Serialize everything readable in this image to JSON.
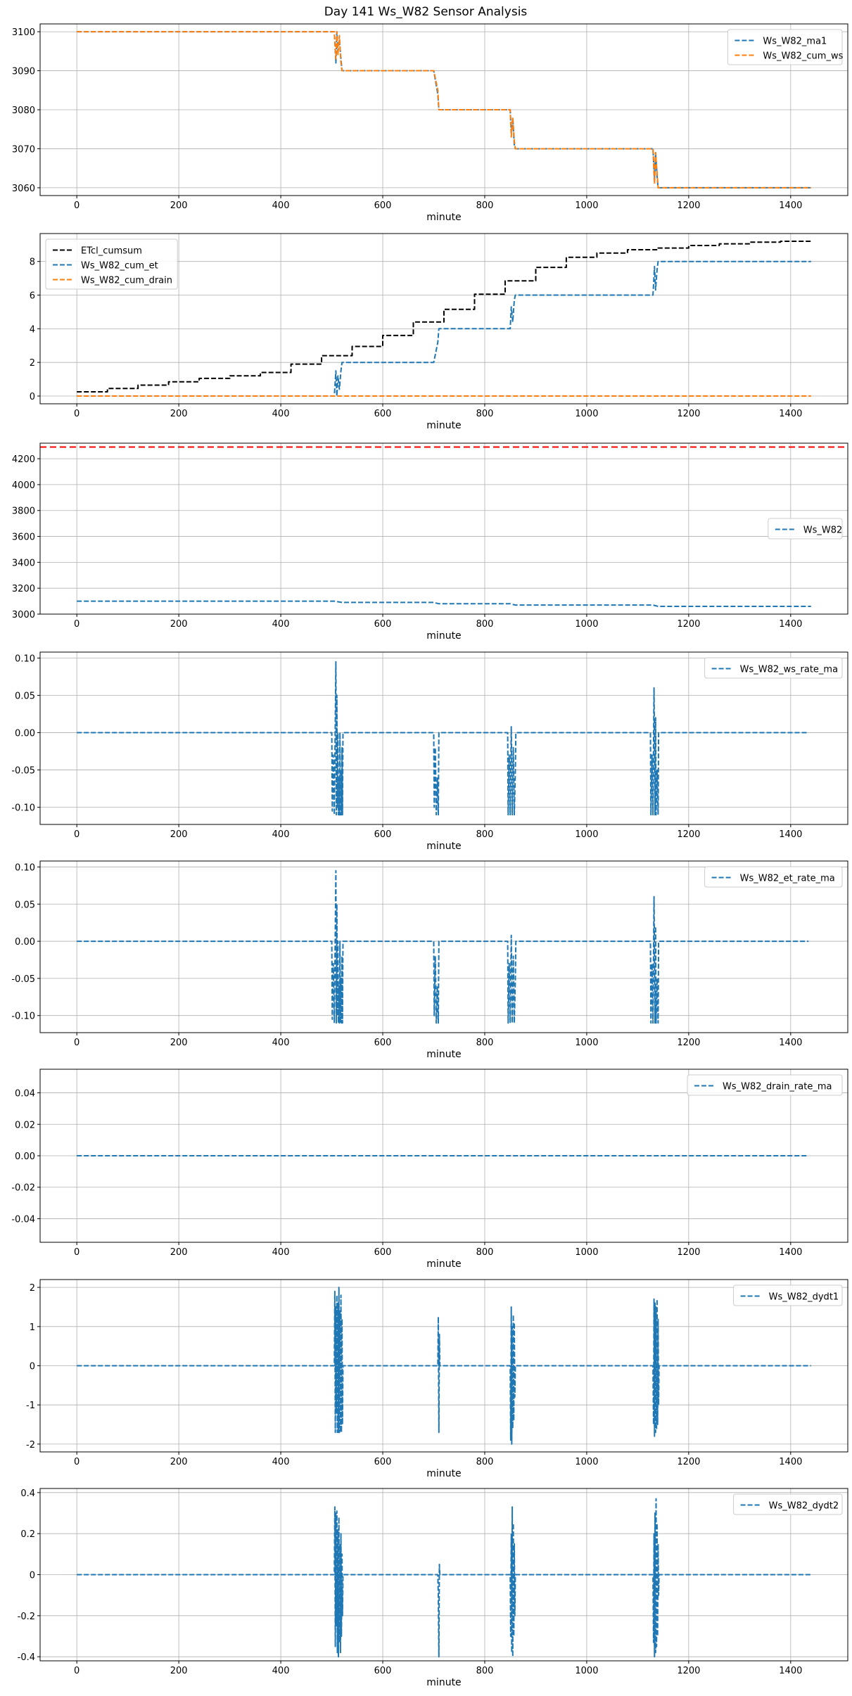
{
  "figure": {
    "title": "Day 141 Ws_W82 Sensor Analysis"
  },
  "colors": {
    "blue": "#1f77b4",
    "orange": "#ff7f0e",
    "black": "#000000",
    "red": "#ff0000",
    "grid": "#b0b0b0"
  },
  "chart_data": [
    {
      "type": "line",
      "xlabel": "minute",
      "xlim": [
        -72,
        1512
      ],
      "ylim": [
        3058,
        3102
      ],
      "x_ticks": [
        0,
        200,
        400,
        600,
        800,
        1000,
        1200,
        1400
      ],
      "y_ticks": [
        3060,
        3070,
        3080,
        3090,
        3100
      ],
      "legend_position": "upper right",
      "grid": true,
      "series": [
        {
          "name": "Ws_W82_ma1",
          "color": "#1f77b4",
          "dashed": true,
          "x": [
            0,
            505,
            508,
            510,
            512,
            515,
            518,
            520,
            700,
            708,
            710,
            850,
            852,
            855,
            858,
            860,
            1130,
            1133,
            1135,
            1138,
            1140,
            1440
          ],
          "y": [
            3100,
            3100,
            3092,
            3100,
            3095,
            3098,
            3093,
            3090,
            3090,
            3084,
            3080,
            3080,
            3074,
            3078,
            3071,
            3070,
            3070,
            3062,
            3069,
            3063,
            3060,
            3060
          ]
        },
        {
          "name": "Ws_W82_cum_ws",
          "color": "#ff7f0e",
          "dashed": true,
          "x": [
            0,
            505,
            508,
            510,
            512,
            515,
            518,
            520,
            700,
            708,
            710,
            850,
            852,
            855,
            858,
            860,
            1130,
            1133,
            1135,
            1138,
            1140,
            1440
          ],
          "y": [
            3100,
            3100,
            3093,
            3100,
            3094,
            3099,
            3092,
            3090,
            3090,
            3085,
            3080,
            3080,
            3073,
            3078,
            3072,
            3070,
            3070,
            3061,
            3069,
            3064,
            3060,
            3060
          ]
        }
      ]
    },
    {
      "type": "line",
      "xlabel": "minute",
      "xlim": [
        -72,
        1512
      ],
      "ylim": [
        -0.46,
        9.66
      ],
      "x_ticks": [
        0,
        200,
        400,
        600,
        800,
        1000,
        1200,
        1400
      ],
      "y_ticks": [
        0,
        2,
        4,
        6,
        8
      ],
      "legend_position": "upper left",
      "grid": true,
      "series": [
        {
          "name": "ETcl_cumsum",
          "color": "#000000",
          "dashed": true,
          "step": true,
          "x": [
            0,
            60,
            120,
            180,
            240,
            300,
            360,
            420,
            480,
            540,
            600,
            660,
            720,
            780,
            840,
            900,
            960,
            1020,
            1080,
            1140,
            1200,
            1260,
            1320,
            1380,
            1440
          ],
          "y": [
            0.25,
            0.45,
            0.65,
            0.85,
            1.05,
            1.2,
            1.4,
            1.9,
            2.4,
            2.95,
            3.6,
            4.4,
            5.15,
            6.05,
            6.85,
            7.65,
            8.25,
            8.5,
            8.7,
            8.8,
            8.95,
            9.05,
            9.15,
            9.2,
            9.2
          ]
        },
        {
          "name": "Ws_W82_cum_et",
          "color": "#1f77b4",
          "dashed": true,
          "x": [
            0,
            505,
            508,
            510,
            512,
            515,
            518,
            520,
            700,
            708,
            710,
            850,
            852,
            855,
            858,
            860,
            1130,
            1133,
            1135,
            1138,
            1140,
            1440
          ],
          "y": [
            0,
            0,
            1.5,
            0,
            1.2,
            0.4,
            1.5,
            2,
            2,
            3.2,
            4,
            4,
            5.3,
            4.4,
            5.7,
            6,
            6,
            7.7,
            6.3,
            7.5,
            8,
            8
          ]
        },
        {
          "name": "Ws_W82_cum_drain",
          "color": "#ff7f0e",
          "dashed": true,
          "x": [
            0,
            1440
          ],
          "y": [
            0,
            0
          ]
        }
      ]
    },
    {
      "type": "line",
      "xlabel": "minute",
      "xlim": [
        -72,
        1512
      ],
      "ylim": [
        3000,
        4320
      ],
      "x_ticks": [
        0,
        200,
        400,
        600,
        800,
        1000,
        1200,
        1400
      ],
      "y_ticks": [
        3000,
        3200,
        3400,
        3600,
        3800,
        4000,
        4200
      ],
      "legend_position": "center right",
      "grid": true,
      "hline": {
        "y": 4290,
        "color": "#ff0000",
        "dashed": true
      },
      "series": [
        {
          "name": "Ws_W82",
          "color": "#1f77b4",
          "dashed": true,
          "x": [
            0,
            505,
            520,
            700,
            710,
            850,
            860,
            1130,
            1140,
            1440
          ],
          "y": [
            3100,
            3100,
            3090,
            3090,
            3080,
            3080,
            3070,
            3070,
            3060,
            3060
          ]
        }
      ]
    },
    {
      "type": "line",
      "xlabel": "minute",
      "xlim": [
        -72,
        1512
      ],
      "ylim": [
        -0.123,
        0.108
      ],
      "x_ticks": [
        0,
        200,
        400,
        600,
        800,
        1000,
        1200,
        1400
      ],
      "y_ticks": [
        -0.1,
        -0.05,
        0.0,
        0.05,
        0.1
      ],
      "y_tick_labels": [
        "-0.10",
        "-0.05",
        "0.00",
        "0.05",
        "0.10"
      ],
      "legend_position": "upper right",
      "grid": true,
      "series": [
        {
          "name": "Ws_W82_ws_rate_ma",
          "color": "#1f77b4",
          "dashed": true,
          "x": [
            0,
            500,
            501,
            503,
            505,
            507,
            508,
            509,
            510,
            511,
            512,
            513,
            514,
            515,
            516,
            517,
            518,
            519,
            520,
            521,
            522,
            700,
            701,
            703,
            705,
            707,
            709,
            710,
            845,
            846,
            848,
            850,
            852,
            854,
            856,
            858,
            860,
            861,
            1125,
            1126,
            1128,
            1130,
            1132,
            1134,
            1135,
            1136,
            1138,
            1140,
            1141,
            1435
          ],
          "y": [
            0,
            0,
            -0.105,
            -0.03,
            -0.11,
            0.02,
            0.095,
            -0.11,
            0.05,
            -0.1,
            0.0,
            -0.11,
            -0.06,
            -0.11,
            0.0,
            -0.11,
            -0.05,
            -0.11,
            -0.02,
            -0.11,
            0,
            0,
            -0.1,
            -0.02,
            -0.11,
            -0.06,
            -0.11,
            0,
            0,
            -0.11,
            -0.03,
            -0.11,
            0.008,
            -0.11,
            -0.02,
            -0.11,
            -0.05,
            0,
            0,
            -0.11,
            -0.03,
            -0.11,
            0.06,
            -0.11,
            0.02,
            -0.11,
            -0.05,
            -0.11,
            0,
            0
          ]
        }
      ]
    },
    {
      "type": "line",
      "xlabel": "minute",
      "xlim": [
        -72,
        1512
      ],
      "ylim": [
        -0.123,
        0.108
      ],
      "x_ticks": [
        0,
        200,
        400,
        600,
        800,
        1000,
        1200,
        1400
      ],
      "y_ticks": [
        -0.1,
        -0.05,
        0.0,
        0.05,
        0.1
      ],
      "y_tick_labels": [
        "-0.10",
        "-0.05",
        "0.00",
        "0.05",
        "0.10"
      ],
      "legend_position": "upper right",
      "grid": true,
      "series": [
        {
          "name": "Ws_W82_et_rate_ma",
          "color": "#1f77b4",
          "dashed": true,
          "x": [
            0,
            500,
            501,
            503,
            505,
            507,
            508,
            509,
            510,
            511,
            512,
            513,
            514,
            515,
            516,
            517,
            518,
            519,
            520,
            521,
            522,
            700,
            701,
            703,
            705,
            707,
            709,
            710,
            845,
            846,
            848,
            850,
            852,
            854,
            856,
            858,
            860,
            861,
            1125,
            1126,
            1128,
            1130,
            1132,
            1134,
            1135,
            1136,
            1138,
            1140,
            1141,
            1435
          ],
          "y": [
            0,
            0,
            -0.105,
            -0.03,
            -0.11,
            0.02,
            0.095,
            -0.11,
            0.05,
            -0.1,
            0.0,
            -0.11,
            -0.06,
            -0.11,
            0.0,
            -0.11,
            -0.05,
            -0.11,
            -0.02,
            -0.11,
            0,
            0,
            -0.1,
            -0.02,
            -0.11,
            -0.06,
            -0.11,
            0,
            0,
            -0.11,
            -0.03,
            -0.11,
            0.008,
            -0.11,
            -0.02,
            -0.11,
            -0.05,
            0,
            0,
            -0.11,
            -0.03,
            -0.11,
            0.06,
            -0.11,
            0.02,
            -0.11,
            -0.05,
            -0.11,
            0,
            0
          ]
        }
      ]
    },
    {
      "type": "line",
      "xlabel": "minute",
      "xlim": [
        -72,
        1512
      ],
      "ylim": [
        -0.055,
        0.055
      ],
      "x_ticks": [
        0,
        200,
        400,
        600,
        800,
        1000,
        1200,
        1400
      ],
      "y_ticks": [
        -0.04,
        -0.02,
        0.0,
        0.02,
        0.04
      ],
      "y_tick_labels": [
        "-0.04",
        "-0.02",
        "0.00",
        "0.02",
        "0.04"
      ],
      "legend_position": "upper right",
      "grid": true,
      "series": [
        {
          "name": "Ws_W82_drain_rate_ma",
          "color": "#1f77b4",
          "dashed": true,
          "x": [
            0,
            1435
          ],
          "y": [
            0,
            0
          ]
        }
      ]
    },
    {
      "type": "line",
      "xlabel": "minute",
      "xlim": [
        -72,
        1512
      ],
      "ylim": [
        -2.2,
        2.2
      ],
      "x_ticks": [
        0,
        200,
        400,
        600,
        800,
        1000,
        1200,
        1400
      ],
      "y_ticks": [
        -2,
        -1,
        0,
        1,
        2
      ],
      "legend_position": "upper right",
      "grid": true,
      "series": [
        {
          "name": "Ws_W82_dydt1",
          "color": "#1f77b4",
          "dashed": true,
          "x": [
            0,
            505,
            506,
            507,
            508,
            509,
            510,
            511,
            512,
            513,
            514,
            515,
            516,
            517,
            518,
            519,
            520,
            521,
            522,
            708,
            709,
            710,
            711,
            712,
            850,
            851,
            852,
            853,
            854,
            855,
            856,
            857,
            858,
            859,
            860,
            1130,
            1131,
            1132,
            1133,
            1134,
            1135,
            1136,
            1137,
            1138,
            1139,
            1140,
            1141,
            1142,
            1440
          ],
          "y": [
            0,
            0,
            1.9,
            -1.7,
            1.5,
            -1.2,
            1.8,
            -1.7,
            1.6,
            -1.7,
            2.0,
            -1.7,
            1.4,
            -1.7,
            1.8,
            -1.7,
            1.2,
            -1.5,
            0,
            0,
            1.25,
            -1.7,
            0.8,
            0,
            0,
            -1.9,
            1.5,
            -2.0,
            1.0,
            -1.6,
            1.3,
            -1.4,
            1.1,
            -0.8,
            0,
            0,
            -1.5,
            1.7,
            -1.8,
            1.6,
            -1.7,
            1.5,
            -1.6,
            1.7,
            -1.5,
            1.2,
            -1.0,
            0,
            0
          ]
        }
      ]
    },
    {
      "type": "line",
      "xlabel": "minute",
      "xlim": [
        -72,
        1512
      ],
      "ylim": [
        -0.42,
        0.42
      ],
      "x_ticks": [
        0,
        200,
        400,
        600,
        800,
        1000,
        1200,
        1400
      ],
      "y_ticks": [
        -0.4,
        -0.2,
        0.0,
        0.2,
        0.4
      ],
      "legend_position": "upper right",
      "grid": true,
      "series": [
        {
          "name": "Ws_W82_dydt2",
          "color": "#1f77b4",
          "dashed": true,
          "x": [
            0,
            505,
            506,
            507,
            508,
            509,
            510,
            511,
            512,
            513,
            514,
            515,
            516,
            517,
            518,
            519,
            520,
            521,
            522,
            708,
            709,
            710,
            711,
            712,
            850,
            851,
            852,
            853,
            854,
            855,
            856,
            857,
            858,
            859,
            860,
            1130,
            1131,
            1132,
            1133,
            1134,
            1135,
            1136,
            1137,
            1138,
            1139,
            1140,
            1141,
            1142,
            1440
          ],
          "y": [
            0,
            0,
            0.33,
            -0.35,
            0.3,
            -0.25,
            0.31,
            -0.38,
            0.22,
            -0.4,
            0.28,
            -0.33,
            0.15,
            -0.38,
            0.2,
            -0.3,
            0.1,
            -0.2,
            0,
            0,
            -0.1,
            -0.4,
            0.05,
            0,
            0,
            -0.3,
            0.2,
            -0.38,
            0.33,
            -0.4,
            0.25,
            -0.3,
            0.15,
            -0.2,
            0,
            0,
            -0.33,
            0.2,
            -0.4,
            0.3,
            -0.38,
            0.37,
            -0.35,
            0.25,
            -0.3,
            0.15,
            -0.1,
            0,
            0
          ]
        }
      ]
    }
  ]
}
